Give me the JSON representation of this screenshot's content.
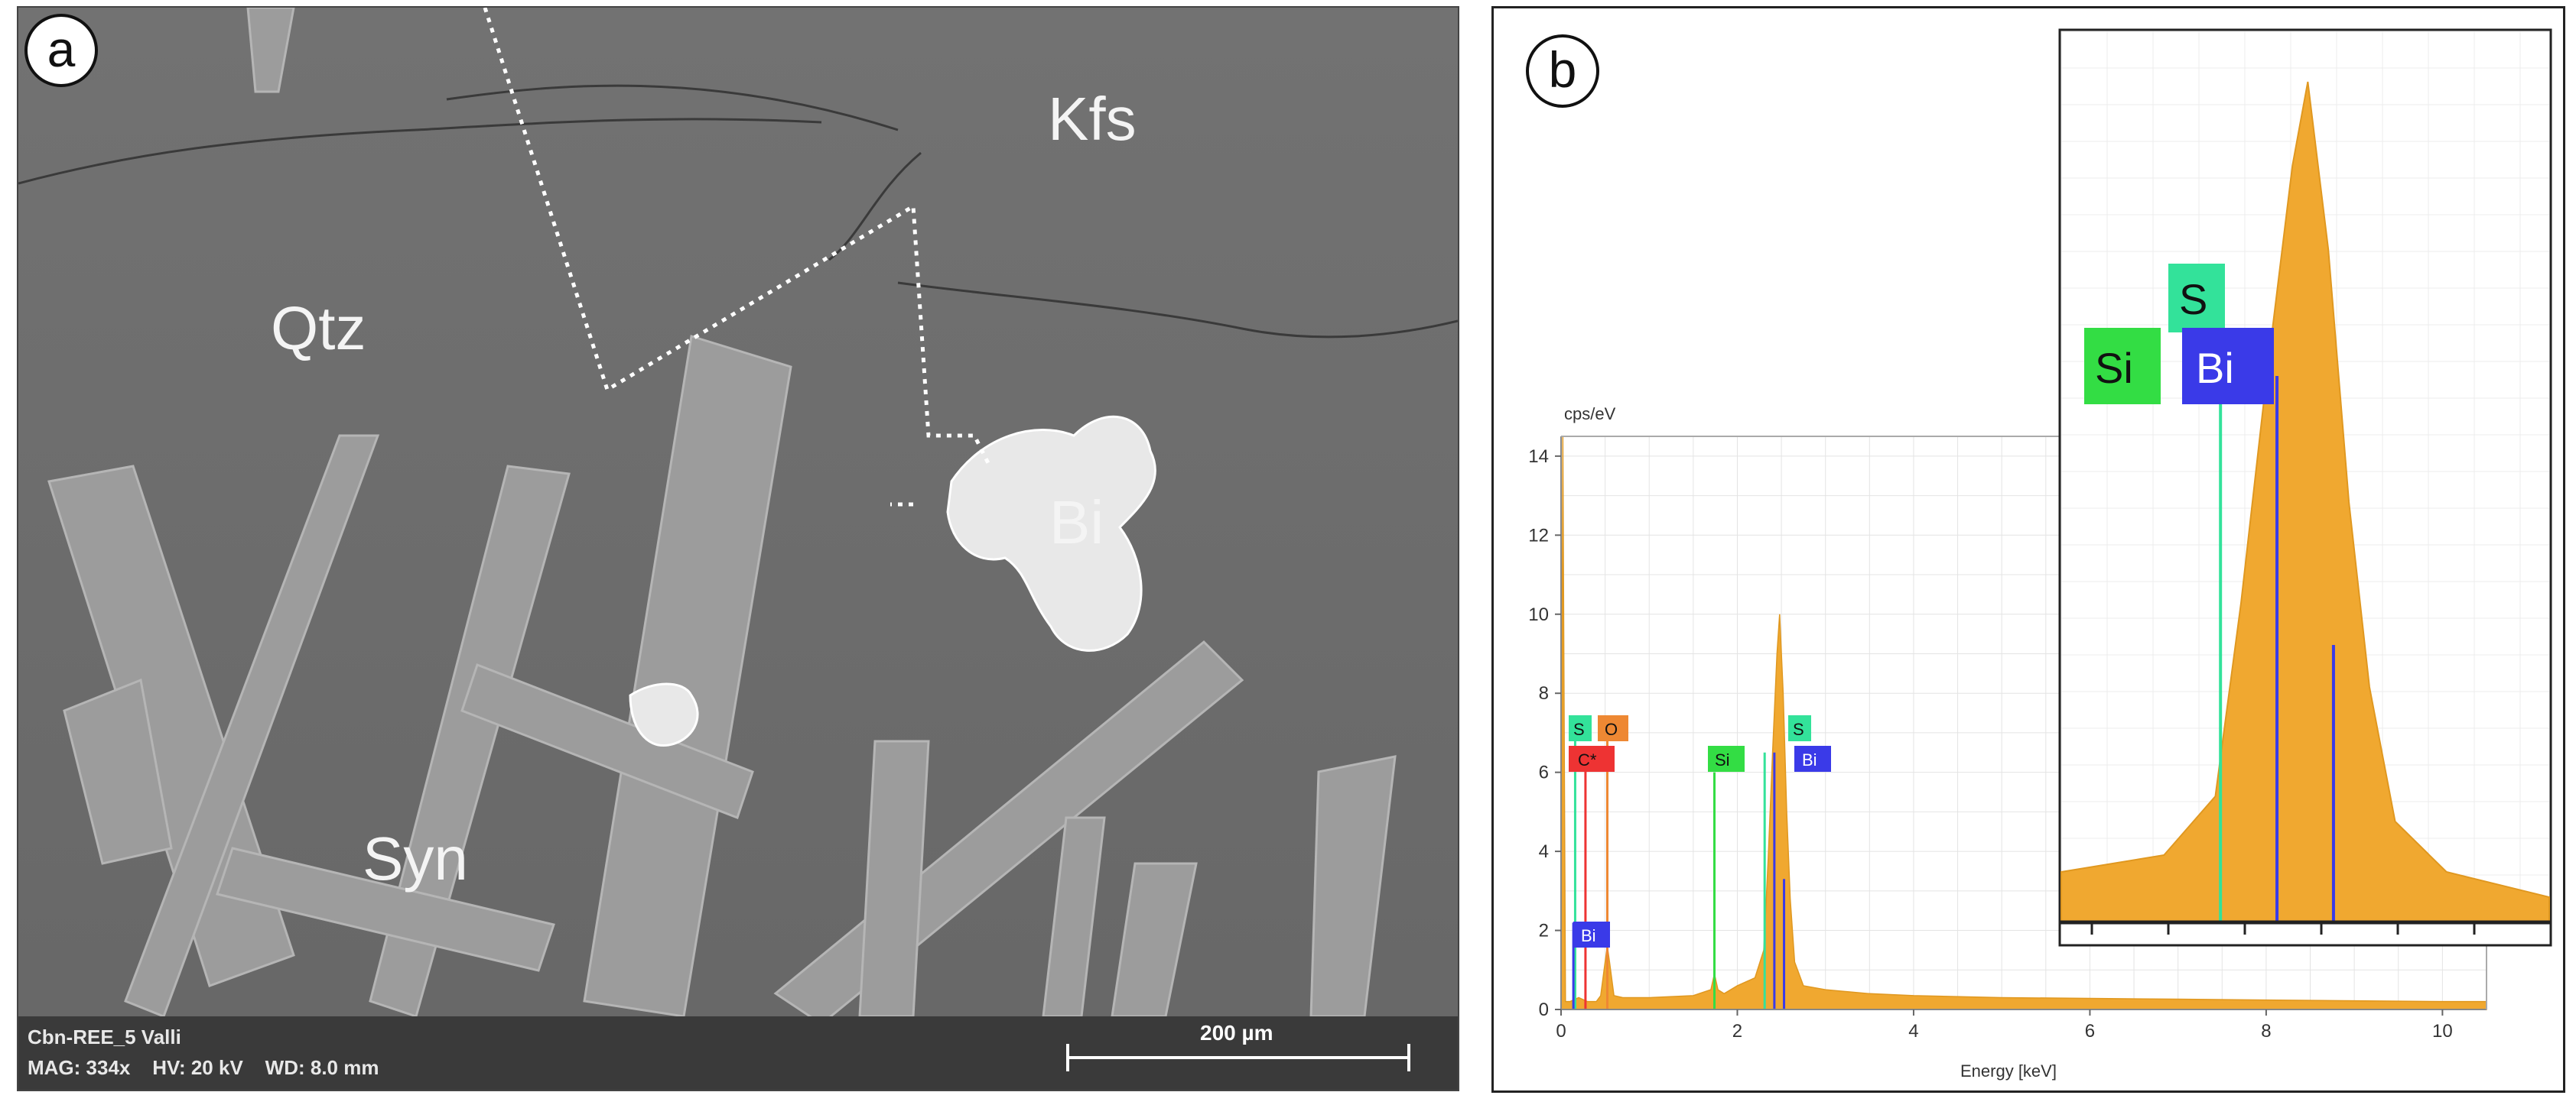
{
  "panel_a": {
    "letter": "a",
    "phase_labels": {
      "kfs": "Kfs",
      "qtz": "Qtz",
      "bi": "Bi",
      "syn": "Syn"
    },
    "info": {
      "sample": "Cbn-REE_5 Valli",
      "line2": "MAG: 334x    HV: 20 kV    WD: 8.0 mm",
      "scale_bar": "200 µm"
    }
  },
  "panel_b": {
    "letter": "b",
    "colors": {
      "spectrum": "#f0a830",
      "si": "#33dd44",
      "s": "#33e29a",
      "bi": "#3a3ae8",
      "c": "#ee3333",
      "o": "#ee8833"
    },
    "main_peak_labels": {
      "s1": "S",
      "o": "O",
      "c": "C*",
      "si": "Si",
      "s2": "S",
      "bi1": "Bi",
      "bi2": "Bi"
    },
    "inset_peak_labels": {
      "s": "S",
      "si": "Si",
      "bi": "Bi"
    }
  },
  "chart_data": {
    "type": "area",
    "title": "",
    "ylabel": "cps/eV",
    "xlabel": "Energy [keV]",
    "xlim": [
      0,
      10.5
    ],
    "ylim": [
      0,
      14.5
    ],
    "x_ticks": [
      "0",
      "2",
      "4",
      "6",
      "8",
      "10"
    ],
    "y_ticks": [
      "0",
      "2",
      "4",
      "6",
      "8",
      "10",
      "12",
      "14"
    ],
    "grid": true,
    "series": [
      {
        "x": [
          0.0,
          0.02,
          0.05,
          0.1,
          0.15,
          0.2,
          0.25,
          0.3,
          0.4,
          0.45,
          0.5,
          0.525,
          0.55,
          0.6,
          0.7,
          1.0,
          1.5,
          1.7,
          1.74,
          1.78,
          1.85,
          2.0,
          2.2,
          2.3,
          2.35,
          2.4,
          2.45,
          2.48,
          2.52,
          2.56,
          2.6,
          2.65,
          2.75,
          3.0,
          3.5,
          4.0,
          5.0,
          6.0,
          7.0,
          8.0,
          9.0,
          10.0,
          10.5
        ],
        "y": [
          0.0,
          14.5,
          0.2,
          0.2,
          0.25,
          0.3,
          0.25,
          0.2,
          0.2,
          0.35,
          1.2,
          1.6,
          1.2,
          0.35,
          0.3,
          0.3,
          0.35,
          0.5,
          0.9,
          0.5,
          0.4,
          0.6,
          0.8,
          1.5,
          3.8,
          6.5,
          9.0,
          10.0,
          8.0,
          5.0,
          2.8,
          1.2,
          0.6,
          0.5,
          0.4,
          0.35,
          0.3,
          0.28,
          0.26,
          0.24,
          0.22,
          0.2,
          0.2
        ]
      }
    ],
    "element_lines": [
      {
        "element": "C*",
        "energy": 0.277,
        "height": 6.5
      },
      {
        "element": "O",
        "energy": 0.525,
        "height": 7.2
      },
      {
        "element": "S",
        "energy": 0.16,
        "height": 7.0
      },
      {
        "element": "Bi",
        "energy": 0.14,
        "height": 2.2
      },
      {
        "element": "Si",
        "energy": 1.74,
        "height": 6.0
      },
      {
        "element": "S",
        "energy": 2.31,
        "height": 6.5
      },
      {
        "element": "Bi",
        "energy": 2.42,
        "height": 6.5
      },
      {
        "element": "Bi",
        "energy": 2.53,
        "height": 3.3
      }
    ]
  }
}
